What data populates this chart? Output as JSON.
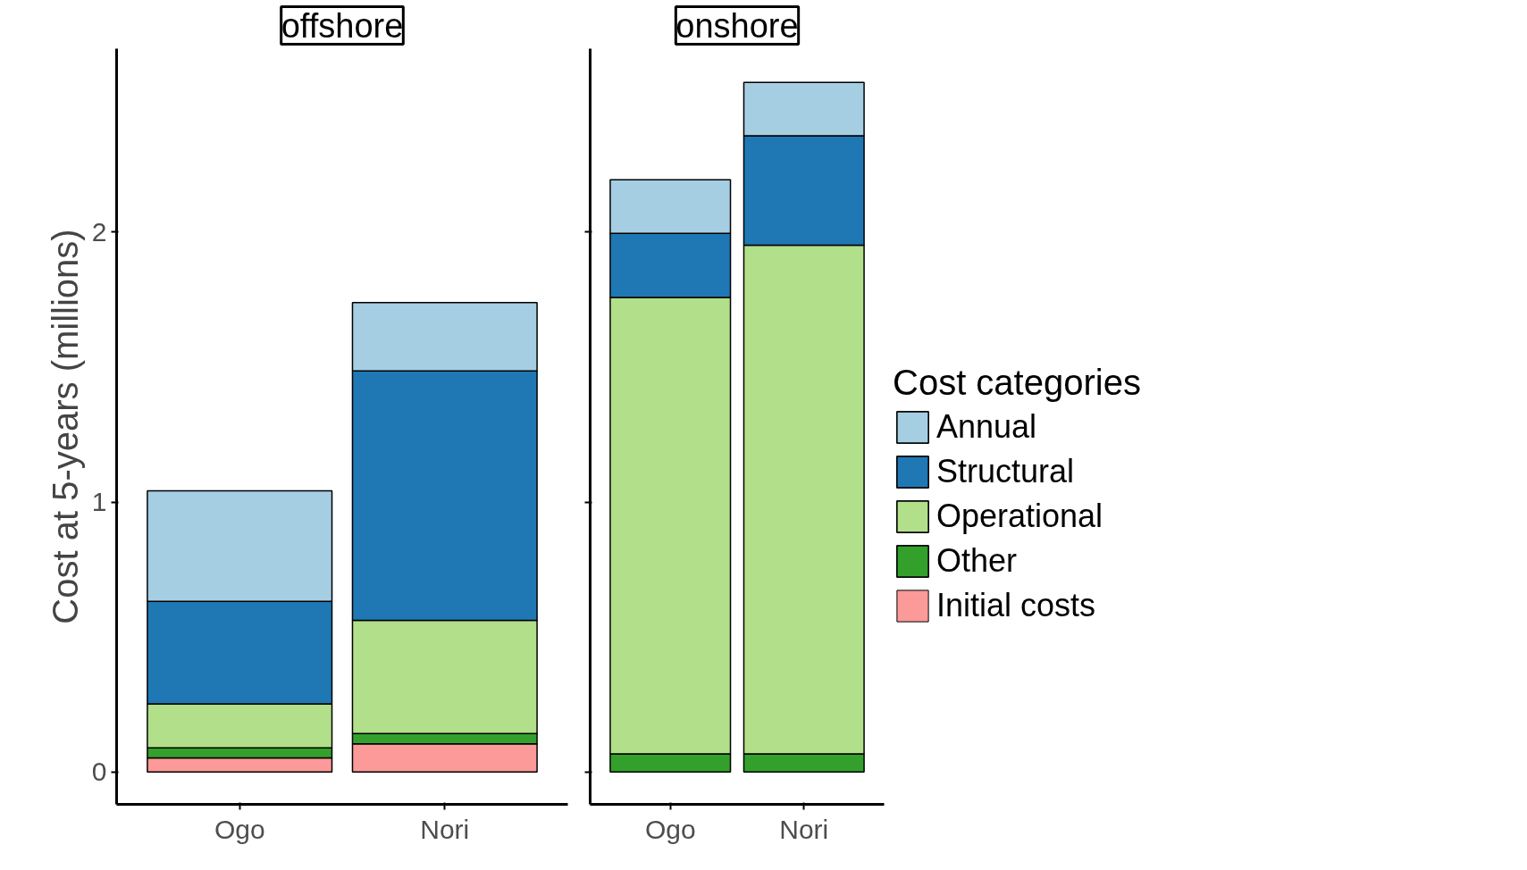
{
  "chart_data": [
    {
      "type": "bar",
      "title": "offshore",
      "ylabel": "Cost at 5-years (millions)",
      "categories": [
        "Ogo",
        "Nori"
      ],
      "stacked": true,
      "ylim": [
        -0.12,
        2.68
      ],
      "yticks": [
        0,
        1,
        2
      ],
      "grid": false,
      "series": [
        {
          "color": "#fb9a99",
          "values": [
            0.052,
            0.104
          ]
        },
        {
          "color": "#33a02c",
          "values": [
            0.037,
            0.038
          ]
        },
        {
          "color": "#b2df8a",
          "values": [
            0.163,
            0.42
          ]
        },
        {
          "color": "#1f78b4",
          "values": [
            0.38,
            0.924
          ]
        },
        {
          "color": "#a6cee3",
          "values": [
            0.41,
            0.253
          ]
        }
      ]
    },
    {
      "type": "bar",
      "title": "onshore",
      "categories": [
        "Ogo",
        "Nori"
      ],
      "stacked": true,
      "ylim": [
        -0.12,
        2.68
      ],
      "yticks": [
        0,
        1,
        2
      ],
      "grid": false,
      "tick_labels": "x",
      "legend": "right",
      "legend_title": "Cost categories",
      "series": [
        {
          "name": "Initial costs",
          "color": "#fb9a99",
          "values": [
            null,
            null
          ]
        },
        {
          "name": "Other",
          "color": "#33a02c",
          "values": [
            0.067,
            0.067
          ]
        },
        {
          "name": "Operational",
          "color": "#b2df8a",
          "values": [
            1.691,
            1.885
          ]
        },
        {
          "name": "Structural",
          "color": "#1f78b4",
          "values": [
            0.238,
            0.405
          ]
        },
        {
          "name": "Annual",
          "color": "#a6cee3",
          "values": [
            0.198,
            0.198
          ]
        }
      ]
    }
  ]
}
